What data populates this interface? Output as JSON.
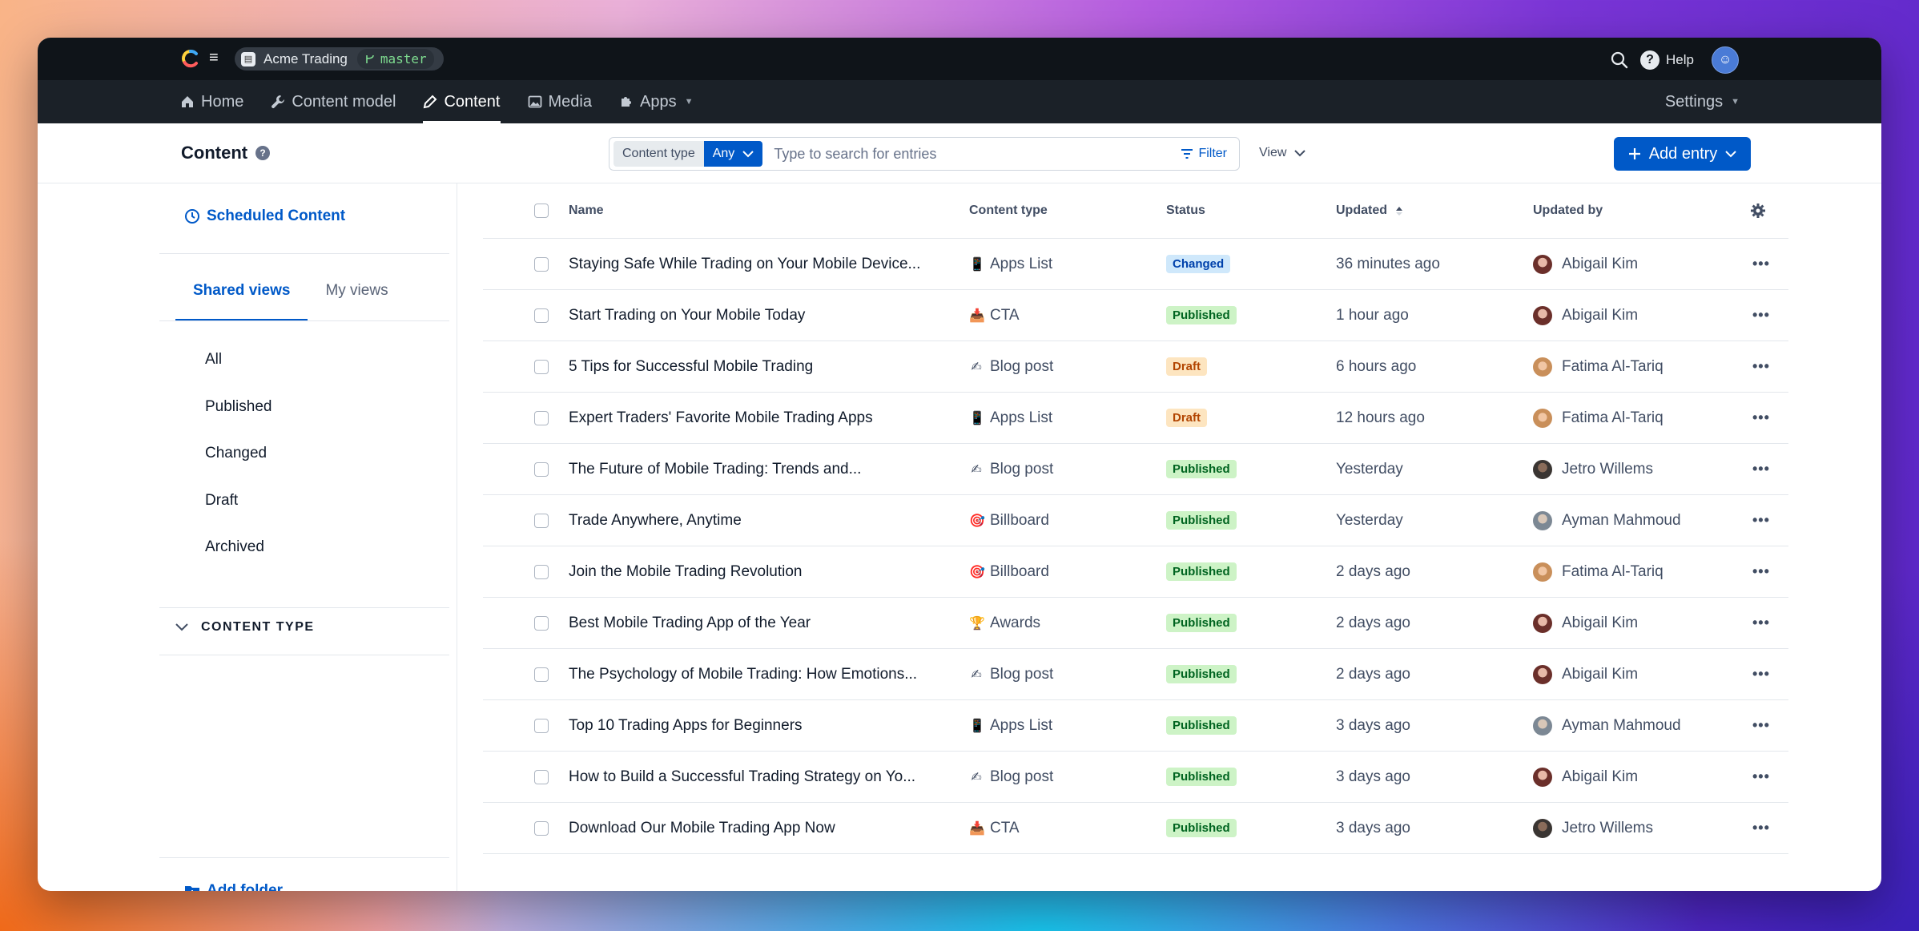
{
  "topbar": {
    "space_name": "Acme Trading",
    "environment": "master",
    "help_label": "Help"
  },
  "nav": {
    "items": [
      {
        "label": "Home",
        "icon": "home-icon"
      },
      {
        "label": "Content model",
        "icon": "wrench-icon"
      },
      {
        "label": "Content",
        "icon": "pen-icon",
        "active": true
      },
      {
        "label": "Media",
        "icon": "image-icon"
      },
      {
        "label": "Apps",
        "icon": "puzzle-icon"
      }
    ],
    "settings_label": "Settings"
  },
  "toolbar": {
    "title": "Content",
    "content_type_label": "Content type",
    "content_type_value": "Any",
    "search_placeholder": "Type to search for entries",
    "filter_label": "Filter",
    "view_label": "View",
    "add_entry_label": "Add entry"
  },
  "sidebar": {
    "scheduled_label": "Scheduled Content",
    "tabs": [
      "Shared views",
      "My views"
    ],
    "views": [
      "All",
      "Published",
      "Changed",
      "Draft",
      "Archived"
    ],
    "content_type_heading": "CONTENT TYPE",
    "add_folder_label": "Add folder"
  },
  "table": {
    "headers": {
      "name": "Name",
      "content_type": "Content type",
      "status": "Status",
      "updated": "Updated",
      "updated_by": "Updated by"
    },
    "rows": [
      {
        "name": "Staying Safe While Trading on Your Mobile Device...",
        "type": "Apps List",
        "type_icon": "📱",
        "status": "Changed",
        "updated": "36 minutes ago",
        "by": "Abigail Kim"
      },
      {
        "name": "Start Trading on Your Mobile Today",
        "type": "CTA",
        "type_icon": "📥",
        "status": "Published",
        "updated": "1 hour ago",
        "by": "Abigail Kim"
      },
      {
        "name": "5 Tips for Successful Mobile Trading",
        "type": "Blog post",
        "type_icon": "✍",
        "status": "Draft",
        "updated": "6 hours ago",
        "by": "Fatima Al-Tariq"
      },
      {
        "name": "Expert Traders' Favorite Mobile Trading Apps",
        "type": "Apps List",
        "type_icon": "📱",
        "status": "Draft",
        "updated": "12 hours ago",
        "by": "Fatima Al-Tariq"
      },
      {
        "name": "The Future of Mobile Trading: Trends and...",
        "type": "Blog post",
        "type_icon": "✍",
        "status": "Published",
        "updated": "Yesterday",
        "by": "Jetro Willems"
      },
      {
        "name": "Trade Anywhere, Anytime",
        "type": "Billboard",
        "type_icon": "🎯",
        "status": "Published",
        "updated": "Yesterday",
        "by": "Ayman Mahmoud"
      },
      {
        "name": "Join the Mobile Trading Revolution",
        "type": "Billboard",
        "type_icon": "🎯",
        "status": "Published",
        "updated": "2 days ago",
        "by": "Fatima Al-Tariq"
      },
      {
        "name": "Best Mobile Trading App of the Year",
        "type": "Awards",
        "type_icon": "🏆",
        "status": "Published",
        "updated": "2 days ago",
        "by": "Abigail Kim"
      },
      {
        "name": "The Psychology of Mobile Trading: How Emotions...",
        "type": "Blog post",
        "type_icon": "✍",
        "status": "Published",
        "updated": "2 days ago",
        "by": "Abigail Kim"
      },
      {
        "name": "Top 10 Trading Apps for Beginners",
        "type": "Apps List",
        "type_icon": "📱",
        "status": "Published",
        "updated": "3 days ago",
        "by": "Ayman Mahmoud"
      },
      {
        "name": "How to Build a Successful Trading Strategy on Yo...",
        "type": "Blog post",
        "type_icon": "✍",
        "status": "Published",
        "updated": "3 days ago",
        "by": "Abigail Kim"
      },
      {
        "name": "Download Our Mobile Trading App Now",
        "type": "CTA",
        "type_icon": "📥",
        "status": "Published",
        "updated": "3 days ago",
        "by": "Jetro Willems"
      }
    ]
  },
  "colors": {
    "accent": "#0059c8",
    "published_bg": "#cdf3c6",
    "changed_bg": "#cfe8fb",
    "draft_bg": "#fde5c0"
  }
}
